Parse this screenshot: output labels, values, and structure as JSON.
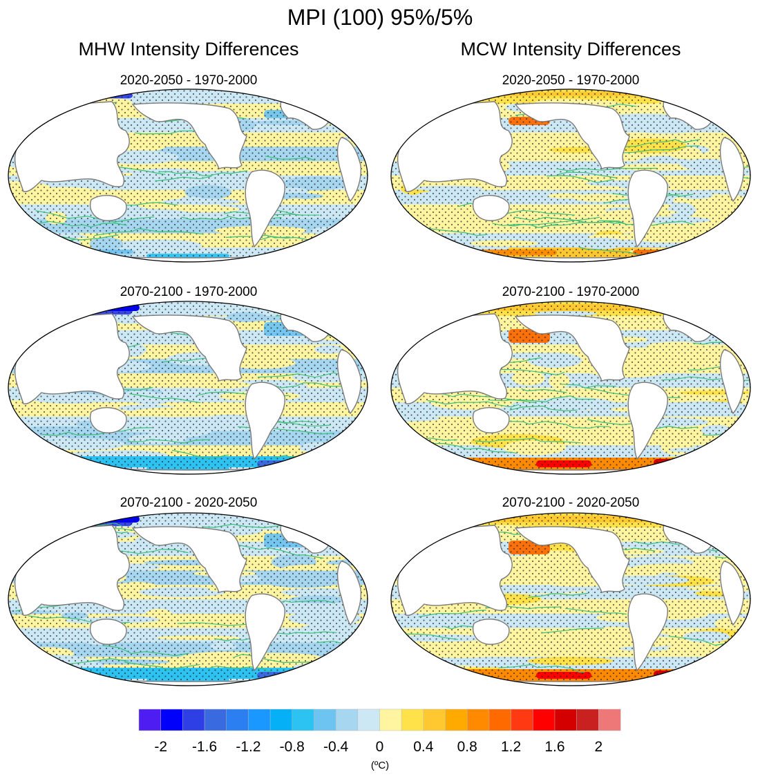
{
  "chart_data": {
    "type": "heatmap",
    "title": "MPI (100) 95%/5%",
    "column_titles": [
      "MHW Intensity Differences",
      "MCW Intensity Differences"
    ],
    "panel_titles": [
      "2020-2050 - 1970-2000",
      "2020-2050 - 1970-2000",
      "2070-2100 - 1970-2000",
      "2070-2100 - 1970-2000",
      "2070-2100 - 2020-2050",
      "2070-2100 - 2020-2050"
    ],
    "colorbar": {
      "levels": [
        -2,
        -1.8,
        -1.6,
        -1.4,
        -1.2,
        -1.0,
        -0.8,
        -0.6,
        -0.4,
        -0.2,
        0,
        0.2,
        0.4,
        0.6,
        0.8,
        1.0,
        1.2,
        1.4,
        1.6,
        1.8,
        2
      ],
      "colors": [
        "#4d1df2",
        "#0000fb",
        "#2f3fe6",
        "#3a6ae0",
        "#2b7ff0",
        "#1a98ff",
        "#06b0f6",
        "#2cc2f2",
        "#6ec4f0",
        "#a6d6f0",
        "#cce8f5",
        "#fff5a0",
        "#ffe24a",
        "#ffc730",
        "#ffaa00",
        "#ff8a00",
        "#ff6a00",
        "#ff3a12",
        "#ff0000",
        "#d40000",
        "#c92020",
        "#ee7777"
      ],
      "tick_labels": [
        "-2",
        "-1.6",
        "-1.2",
        "-0.8",
        "-0.4",
        "0",
        "0.4",
        "0.8",
        "1.2",
        "1.6",
        "2"
      ],
      "tick_values": [
        -2,
        -1.6,
        -1.2,
        -0.8,
        -0.4,
        0,
        0.4,
        0.8,
        1.2,
        1.6,
        2
      ],
      "unit": "(ºC)"
    }
  }
}
